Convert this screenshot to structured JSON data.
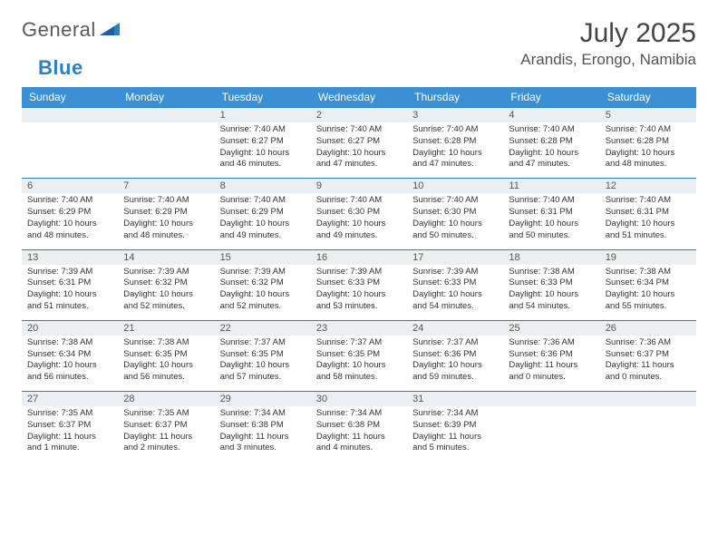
{
  "logo": {
    "text_general": "General",
    "text_blue": "Blue"
  },
  "title": "July 2025",
  "location": "Arandis, Erongo, Namibia",
  "colors": {
    "header_bg": "#3b8fd4",
    "header_text": "#ffffff",
    "daynum_bg": "#eceff2",
    "border": "#2b7fc4",
    "logo_gray": "#5a5a5a",
    "logo_blue": "#2b7fc4"
  },
  "day_headers": [
    "Sunday",
    "Monday",
    "Tuesday",
    "Wednesday",
    "Thursday",
    "Friday",
    "Saturday"
  ],
  "weeks": [
    [
      {
        "n": "",
        "sunrise": "",
        "sunset": "",
        "daylight": ""
      },
      {
        "n": "",
        "sunrise": "",
        "sunset": "",
        "daylight": ""
      },
      {
        "n": "1",
        "sunrise": "Sunrise: 7:40 AM",
        "sunset": "Sunset: 6:27 PM",
        "daylight": "Daylight: 10 hours and 46 minutes."
      },
      {
        "n": "2",
        "sunrise": "Sunrise: 7:40 AM",
        "sunset": "Sunset: 6:27 PM",
        "daylight": "Daylight: 10 hours and 47 minutes."
      },
      {
        "n": "3",
        "sunrise": "Sunrise: 7:40 AM",
        "sunset": "Sunset: 6:28 PM",
        "daylight": "Daylight: 10 hours and 47 minutes."
      },
      {
        "n": "4",
        "sunrise": "Sunrise: 7:40 AM",
        "sunset": "Sunset: 6:28 PM",
        "daylight": "Daylight: 10 hours and 47 minutes."
      },
      {
        "n": "5",
        "sunrise": "Sunrise: 7:40 AM",
        "sunset": "Sunset: 6:28 PM",
        "daylight": "Daylight: 10 hours and 48 minutes."
      }
    ],
    [
      {
        "n": "6",
        "sunrise": "Sunrise: 7:40 AM",
        "sunset": "Sunset: 6:29 PM",
        "daylight": "Daylight: 10 hours and 48 minutes."
      },
      {
        "n": "7",
        "sunrise": "Sunrise: 7:40 AM",
        "sunset": "Sunset: 6:29 PM",
        "daylight": "Daylight: 10 hours and 48 minutes."
      },
      {
        "n": "8",
        "sunrise": "Sunrise: 7:40 AM",
        "sunset": "Sunset: 6:29 PM",
        "daylight": "Daylight: 10 hours and 49 minutes."
      },
      {
        "n": "9",
        "sunrise": "Sunrise: 7:40 AM",
        "sunset": "Sunset: 6:30 PM",
        "daylight": "Daylight: 10 hours and 49 minutes."
      },
      {
        "n": "10",
        "sunrise": "Sunrise: 7:40 AM",
        "sunset": "Sunset: 6:30 PM",
        "daylight": "Daylight: 10 hours and 50 minutes."
      },
      {
        "n": "11",
        "sunrise": "Sunrise: 7:40 AM",
        "sunset": "Sunset: 6:31 PM",
        "daylight": "Daylight: 10 hours and 50 minutes."
      },
      {
        "n": "12",
        "sunrise": "Sunrise: 7:40 AM",
        "sunset": "Sunset: 6:31 PM",
        "daylight": "Daylight: 10 hours and 51 minutes."
      }
    ],
    [
      {
        "n": "13",
        "sunrise": "Sunrise: 7:39 AM",
        "sunset": "Sunset: 6:31 PM",
        "daylight": "Daylight: 10 hours and 51 minutes."
      },
      {
        "n": "14",
        "sunrise": "Sunrise: 7:39 AM",
        "sunset": "Sunset: 6:32 PM",
        "daylight": "Daylight: 10 hours and 52 minutes."
      },
      {
        "n": "15",
        "sunrise": "Sunrise: 7:39 AM",
        "sunset": "Sunset: 6:32 PM",
        "daylight": "Daylight: 10 hours and 52 minutes."
      },
      {
        "n": "16",
        "sunrise": "Sunrise: 7:39 AM",
        "sunset": "Sunset: 6:33 PM",
        "daylight": "Daylight: 10 hours and 53 minutes."
      },
      {
        "n": "17",
        "sunrise": "Sunrise: 7:39 AM",
        "sunset": "Sunset: 6:33 PM",
        "daylight": "Daylight: 10 hours and 54 minutes."
      },
      {
        "n": "18",
        "sunrise": "Sunrise: 7:38 AM",
        "sunset": "Sunset: 6:33 PM",
        "daylight": "Daylight: 10 hours and 54 minutes."
      },
      {
        "n": "19",
        "sunrise": "Sunrise: 7:38 AM",
        "sunset": "Sunset: 6:34 PM",
        "daylight": "Daylight: 10 hours and 55 minutes."
      }
    ],
    [
      {
        "n": "20",
        "sunrise": "Sunrise: 7:38 AM",
        "sunset": "Sunset: 6:34 PM",
        "daylight": "Daylight: 10 hours and 56 minutes."
      },
      {
        "n": "21",
        "sunrise": "Sunrise: 7:38 AM",
        "sunset": "Sunset: 6:35 PM",
        "daylight": "Daylight: 10 hours and 56 minutes."
      },
      {
        "n": "22",
        "sunrise": "Sunrise: 7:37 AM",
        "sunset": "Sunset: 6:35 PM",
        "daylight": "Daylight: 10 hours and 57 minutes."
      },
      {
        "n": "23",
        "sunrise": "Sunrise: 7:37 AM",
        "sunset": "Sunset: 6:35 PM",
        "daylight": "Daylight: 10 hours and 58 minutes."
      },
      {
        "n": "24",
        "sunrise": "Sunrise: 7:37 AM",
        "sunset": "Sunset: 6:36 PM",
        "daylight": "Daylight: 10 hours and 59 minutes."
      },
      {
        "n": "25",
        "sunrise": "Sunrise: 7:36 AM",
        "sunset": "Sunset: 6:36 PM",
        "daylight": "Daylight: 11 hours and 0 minutes."
      },
      {
        "n": "26",
        "sunrise": "Sunrise: 7:36 AM",
        "sunset": "Sunset: 6:37 PM",
        "daylight": "Daylight: 11 hours and 0 minutes."
      }
    ],
    [
      {
        "n": "27",
        "sunrise": "Sunrise: 7:35 AM",
        "sunset": "Sunset: 6:37 PM",
        "daylight": "Daylight: 11 hours and 1 minute."
      },
      {
        "n": "28",
        "sunrise": "Sunrise: 7:35 AM",
        "sunset": "Sunset: 6:37 PM",
        "daylight": "Daylight: 11 hours and 2 minutes."
      },
      {
        "n": "29",
        "sunrise": "Sunrise: 7:34 AM",
        "sunset": "Sunset: 6:38 PM",
        "daylight": "Daylight: 11 hours and 3 minutes."
      },
      {
        "n": "30",
        "sunrise": "Sunrise: 7:34 AM",
        "sunset": "Sunset: 6:38 PM",
        "daylight": "Daylight: 11 hours and 4 minutes."
      },
      {
        "n": "31",
        "sunrise": "Sunrise: 7:34 AM",
        "sunset": "Sunset: 6:39 PM",
        "daylight": "Daylight: 11 hours and 5 minutes."
      },
      {
        "n": "",
        "sunrise": "",
        "sunset": "",
        "daylight": ""
      },
      {
        "n": "",
        "sunrise": "",
        "sunset": "",
        "daylight": ""
      }
    ]
  ]
}
